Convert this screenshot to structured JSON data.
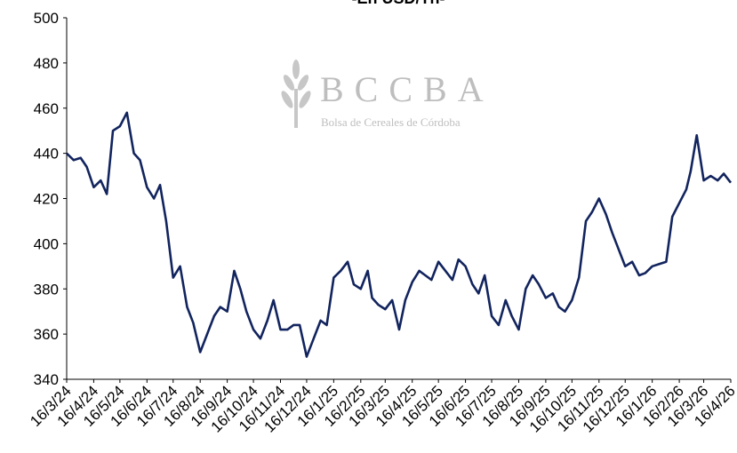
{
  "chart_data": {
    "type": "line",
    "title": "-En USD/Tn-",
    "watermark": {
      "title": "BCCBA",
      "subtitle": "Bolsa de Cereales de Córdoba"
    },
    "x": [
      "16/3/24",
      "24/3/24",
      "1/4/24",
      "8/4/24",
      "16/4/24",
      "24/4/24",
      "1/5/24",
      "8/5/24",
      "16/5/24",
      "24/5/24",
      "1/6/24",
      "8/6/24",
      "16/6/24",
      "24/6/24",
      "1/7/24",
      "8/7/24",
      "16/7/24",
      "24/7/24",
      "1/8/24",
      "8/8/24",
      "16/8/24",
      "24/8/24",
      "1/9/24",
      "8/9/24",
      "16/9/24",
      "24/9/24",
      "1/10/24",
      "8/10/24",
      "16/10/24",
      "24/10/24",
      "1/11/24",
      "8/11/24",
      "16/11/24",
      "24/11/24",
      "1/12/24",
      "8/12/24",
      "16/12/24",
      "24/12/24",
      "1/1/25",
      "8/1/25",
      "16/1/25",
      "24/1/25",
      "1/2/25",
      "8/2/25",
      "16/2/25",
      "24/2/25",
      "1/3/25",
      "8/3/25",
      "16/3/25",
      "24/3/25",
      "1/4/25",
      "8/4/25",
      "16/4/25",
      "24/4/25",
      "1/5/25",
      "8/5/25",
      "16/5/25",
      "24/5/25",
      "1/6/25",
      "8/6/25",
      "16/6/25",
      "24/6/25",
      "1/7/25",
      "8/7/25",
      "16/7/25",
      "24/7/25",
      "1/8/25",
      "8/8/25",
      "16/8/25",
      "24/8/25",
      "1/9/25",
      "8/9/25",
      "16/9/25",
      "24/9/25",
      "1/10/25",
      "8/10/25",
      "16/10/25",
      "24/10/25",
      "1/11/25",
      "8/11/25",
      "16/11/25",
      "24/11/25",
      "1/12/25",
      "8/12/25",
      "16/12/25",
      "24/12/25",
      "1/1/26",
      "8/1/26",
      "16/1/26",
      "24/1/26",
      "1/2/26",
      "8/2/26",
      "16/2/26",
      "24/2/26",
      "1/3/26",
      "8/3/26",
      "16/3/26",
      "24/3/26",
      "1/4/26",
      "8/4/26",
      "16/4/26"
    ],
    "series": [
      {
        "name": "USD/Tn",
        "color": "#12245e",
        "values": [
          440,
          437,
          438,
          434,
          425,
          428,
          422,
          450,
          452,
          458,
          440,
          437,
          425,
          420,
          426,
          410,
          385,
          390,
          372,
          365,
          352,
          360,
          368,
          372,
          370,
          388,
          380,
          370,
          362,
          358,
          366,
          375,
          362,
          362,
          364,
          364,
          350,
          358,
          366,
          364,
          385,
          388,
          392,
          382,
          380,
          388,
          376,
          373,
          371,
          375,
          362,
          375,
          383,
          388,
          386,
          384,
          392,
          388,
          384,
          393,
          390,
          382,
          378,
          386,
          368,
          364,
          375,
          368,
          362,
          380,
          386,
          382,
          376,
          378,
          372,
          370,
          375,
          385,
          410,
          414,
          420,
          413,
          405,
          398,
          390,
          392,
          386,
          387,
          390,
          391,
          392,
          412,
          418,
          424,
          432,
          448,
          428,
          430,
          428,
          431,
          427
        ]
      }
    ],
    "xlim": [
      "16/3/24",
      "16/4/26"
    ],
    "xticks": [
      "16/3/24",
      "16/4/24",
      "16/5/24",
      "16/6/24",
      "16/7/24",
      "16/8/24",
      "16/9/24",
      "16/10/24",
      "16/11/24",
      "16/12/24",
      "16/1/25",
      "16/2/25",
      "16/3/25",
      "16/4/25",
      "16/5/25",
      "16/6/25",
      "16/7/25",
      "16/8/25",
      "16/9/25",
      "16/10/25",
      "16/11/25",
      "16/12/25",
      "16/1/26",
      "16/2/26",
      "16/3/26",
      "16/4/26"
    ],
    "ylim": [
      340,
      500
    ],
    "yticks": [
      340,
      360,
      380,
      400,
      420,
      440,
      460,
      480,
      500
    ],
    "grid": false
  }
}
